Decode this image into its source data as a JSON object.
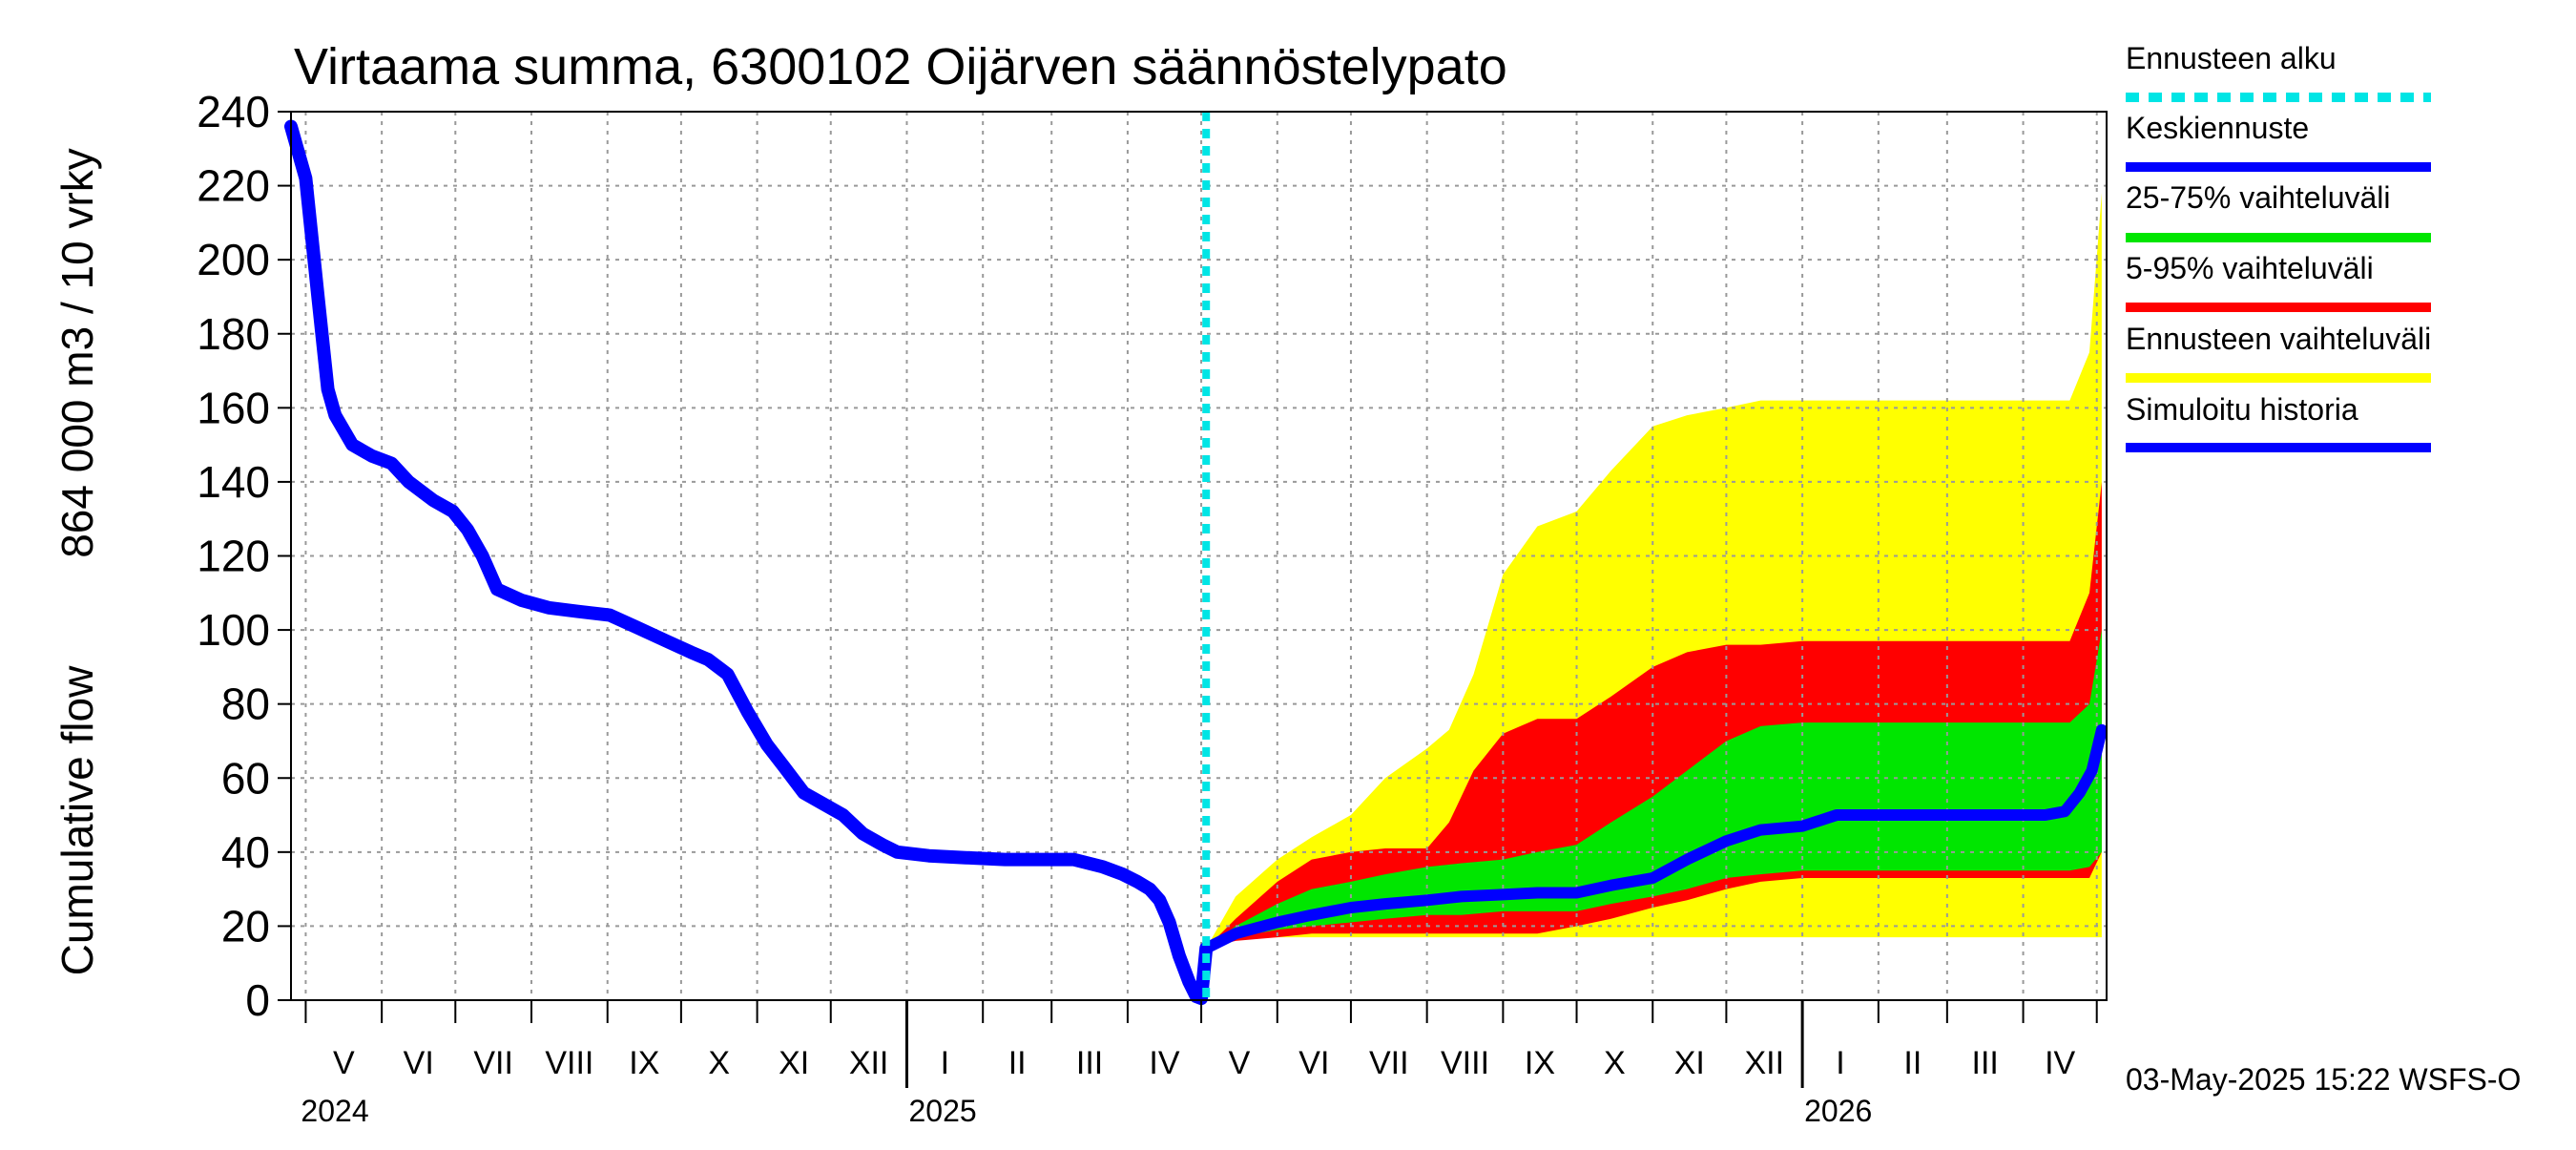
{
  "chart_data": {
    "type": "area",
    "title": "Virtaama summa, 6300102 Oijärven säännöstelypato",
    "ylabel_lines": [
      "Cumulative flow",
      "864 000 m3 / 10 vrky"
    ],
    "ylim": [
      0,
      240
    ],
    "y_ticks": [
      "0",
      "20",
      "40",
      "60",
      "80",
      "100",
      "120",
      "140",
      "160",
      "180",
      "200",
      "220",
      "240"
    ],
    "x_range": [
      "2024-04-25",
      "2026-05-05"
    ],
    "forecast_start": "2025-05-03",
    "months": [
      {
        "label": "V",
        "start": "2024-05-01"
      },
      {
        "label": "VI",
        "start": "2024-06-01"
      },
      {
        "label": "VII",
        "start": "2024-07-01"
      },
      {
        "label": "VIII",
        "start": "2024-08-01"
      },
      {
        "label": "IX",
        "start": "2024-09-01"
      },
      {
        "label": "X",
        "start": "2024-10-01"
      },
      {
        "label": "XI",
        "start": "2024-11-01"
      },
      {
        "label": "XII",
        "start": "2024-12-01"
      },
      {
        "label": "I",
        "start": "2025-01-01"
      },
      {
        "label": "II",
        "start": "2025-02-01"
      },
      {
        "label": "III",
        "start": "2025-03-01"
      },
      {
        "label": "IV",
        "start": "2025-04-01"
      },
      {
        "label": "V",
        "start": "2025-05-01"
      },
      {
        "label": "VI",
        "start": "2025-06-01"
      },
      {
        "label": "VII",
        "start": "2025-07-01"
      },
      {
        "label": "VIII",
        "start": "2025-08-01"
      },
      {
        "label": "IX",
        "start": "2025-09-01"
      },
      {
        "label": "X",
        "start": "2025-10-01"
      },
      {
        "label": "XI",
        "start": "2025-11-01"
      },
      {
        "label": "XII",
        "start": "2025-12-01"
      },
      {
        "label": "I",
        "start": "2026-01-01"
      },
      {
        "label": "II",
        "start": "2026-02-01"
      },
      {
        "label": "III",
        "start": "2026-03-01"
      },
      {
        "label": "IV",
        "start": "2026-04-01"
      },
      {
        "label": "",
        "start": "2026-05-01"
      }
    ],
    "years": [
      {
        "label": "2024",
        "date": "2024-04-25"
      },
      {
        "label": "2025",
        "date": "2025-01-01"
      },
      {
        "label": "2026",
        "date": "2026-01-01"
      }
    ],
    "legend": [
      {
        "label": "Ennusteen alku",
        "color": "#00e5e5",
        "style": "dashed"
      },
      {
        "label": "Keskiennuste",
        "color": "#0000ff",
        "style": "solid"
      },
      {
        "label": "25-75% vaihteluväli",
        "color": "#00e600",
        "style": "solid"
      },
      {
        "label": "5-95% vaihteluväli",
        "color": "#ff0000",
        "style": "solid"
      },
      {
        "label": "Ennusteen vaihteluväli",
        "color": "#ffff00",
        "style": "solid"
      },
      {
        "label": "Simuloitu historia",
        "color": "#0000ff",
        "style": "solid"
      }
    ],
    "colors": {
      "simulated_history": "#0000ff",
      "mean_forecast": "#0000ff",
      "range_25_75": "#00e600",
      "range_5_95": "#ff0000",
      "range_full": "#ffff00",
      "forecast_start_line": "#00e5e5",
      "grid": "#999999"
    },
    "simulated_history": {
      "x": [
        "2024-04-25",
        "2024-05-01",
        "2024-05-06",
        "2024-05-10",
        "2024-05-13",
        "2024-05-20",
        "2024-05-28",
        "2024-06-05",
        "2024-06-12",
        "2024-06-22",
        "2024-06-30",
        "2024-07-06",
        "2024-07-12",
        "2024-07-18",
        "2024-07-28",
        "2024-08-08",
        "2024-08-20",
        "2024-09-02",
        "2024-09-12",
        "2024-09-25",
        "2024-10-05",
        "2024-10-12",
        "2024-10-20",
        "2024-10-28",
        "2024-11-05",
        "2024-11-12",
        "2024-11-20",
        "2024-11-28",
        "2024-12-06",
        "2024-12-14",
        "2024-12-22",
        "2024-12-28",
        "2025-01-10",
        "2025-01-25",
        "2025-02-10",
        "2025-02-28",
        "2025-03-10",
        "2025-03-22",
        "2025-03-30",
        "2025-04-05",
        "2025-04-10",
        "2025-04-14",
        "2025-04-18",
        "2025-04-22",
        "2025-04-26",
        "2025-04-29",
        "2025-05-01",
        "2025-05-03"
      ],
      "y": [
        236,
        222,
        190,
        165,
        158,
        150,
        147,
        145,
        140,
        135,
        132,
        127,
        120,
        111,
        108,
        106,
        105,
        104,
        101,
        97,
        94,
        92,
        88,
        78,
        69,
        63,
        56,
        53,
        50,
        45,
        42,
        40,
        39,
        38.5,
        38,
        38,
        38,
        36,
        34,
        32,
        30,
        27,
        21,
        12,
        5,
        1,
        0.5,
        14
      ]
    },
    "mean_forecast": {
      "x": [
        "2025-05-03",
        "2025-05-15",
        "2025-06-01",
        "2025-06-15",
        "2025-07-01",
        "2025-07-15",
        "2025-08-01",
        "2025-08-15",
        "2025-09-01",
        "2025-09-15",
        "2025-10-01",
        "2025-10-15",
        "2025-11-01",
        "2025-11-15",
        "2025-12-01",
        "2025-12-15",
        "2026-01-01",
        "2026-01-15",
        "2026-02-01",
        "2026-02-15",
        "2026-03-01",
        "2026-03-15",
        "2026-04-01",
        "2026-04-10",
        "2026-04-18",
        "2026-04-24",
        "2026-04-29",
        "2026-05-03"
      ],
      "y": [
        14,
        18,
        21,
        23,
        25,
        26,
        27,
        28,
        28.5,
        29,
        29,
        31,
        33,
        38,
        43,
        46,
        47,
        50,
        50,
        50,
        50,
        50,
        50,
        50,
        51,
        56,
        62,
        73
      ]
    },
    "range_full": {
      "x": [
        "2025-05-03",
        "2025-05-15",
        "2025-06-01",
        "2025-06-15",
        "2025-07-01",
        "2025-07-15",
        "2025-08-01",
        "2025-08-10",
        "2025-08-20",
        "2025-09-01",
        "2025-09-15",
        "2025-10-01",
        "2025-10-15",
        "2025-11-01",
        "2025-11-15",
        "2025-12-01",
        "2025-12-15",
        "2026-01-01",
        "2026-02-01",
        "2026-03-01",
        "2026-04-01",
        "2026-04-20",
        "2026-04-28",
        "2026-05-03"
      ],
      "lower": [
        14,
        17,
        17,
        17,
        17,
        17,
        17,
        17,
        17,
        17,
        17,
        17,
        17,
        17,
        17,
        17,
        17,
        17,
        17,
        17,
        17,
        17,
        17,
        17
      ],
      "upper": [
        14,
        28,
        38,
        44,
        50,
        60,
        68,
        73,
        88,
        115,
        128,
        132,
        143,
        155,
        158,
        160,
        162,
        162,
        162,
        162,
        162,
        162,
        175,
        218
      ]
    },
    "range_5_95": {
      "x": [
        "2025-05-03",
        "2025-05-15",
        "2025-06-01",
        "2025-06-15",
        "2025-07-01",
        "2025-07-15",
        "2025-08-01",
        "2025-08-10",
        "2025-08-20",
        "2025-09-01",
        "2025-09-15",
        "2025-10-01",
        "2025-10-15",
        "2025-11-01",
        "2025-11-15",
        "2025-12-01",
        "2025-12-15",
        "2026-01-01",
        "2026-02-01",
        "2026-03-01",
        "2026-04-01",
        "2026-04-20",
        "2026-04-28",
        "2026-05-03"
      ],
      "lower": [
        14,
        16,
        17,
        18,
        18,
        18,
        18,
        18,
        18,
        18,
        18,
        20,
        22,
        25,
        27,
        30,
        32,
        33,
        33,
        33,
        33,
        33,
        33,
        40
      ],
      "upper": [
        14,
        22,
        32,
        38,
        40,
        41,
        41,
        48,
        62,
        72,
        76,
        76,
        82,
        90,
        94,
        96,
        96,
        97,
        97,
        97,
        97,
        97,
        110,
        140
      ]
    },
    "range_25_75": {
      "x": [
        "2025-05-03",
        "2025-05-15",
        "2025-06-01",
        "2025-06-15",
        "2025-07-01",
        "2025-07-15",
        "2025-08-01",
        "2025-08-15",
        "2025-09-01",
        "2025-09-15",
        "2025-10-01",
        "2025-10-15",
        "2025-11-01",
        "2025-11-15",
        "2025-12-01",
        "2025-12-15",
        "2026-01-01",
        "2026-02-01",
        "2026-03-01",
        "2026-04-01",
        "2026-04-20",
        "2026-04-28",
        "2026-05-03"
      ],
      "lower": [
        14,
        17,
        19,
        20,
        21,
        22,
        23,
        23,
        24,
        24,
        24,
        26,
        28,
        30,
        33,
        34,
        35,
        35,
        35,
        35,
        35,
        36,
        40
      ],
      "upper": [
        14,
        20,
        26,
        30,
        32,
        34,
        36,
        37,
        38,
        40,
        42,
        48,
        55,
        62,
        70,
        74,
        75,
        75,
        75,
        75,
        75,
        80,
        100
      ]
    }
  },
  "footer_text": "03-May-2025 15:22 WSFS-O"
}
